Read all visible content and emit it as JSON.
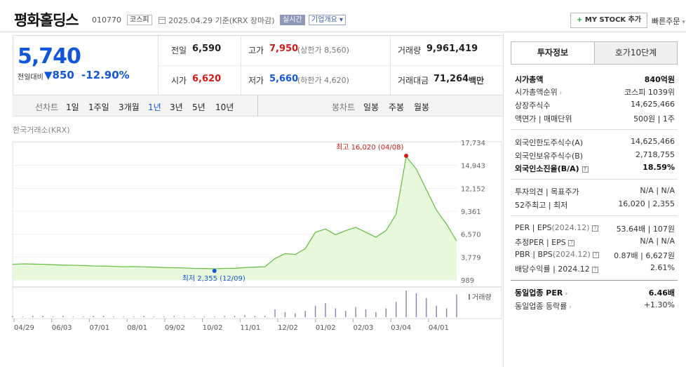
{
  "header": {
    "name": "평화홀딩스",
    "code": "010770",
    "market_badge": "코스피",
    "date_text": "2025.04.29  기준(KRX 장마감)",
    "realtime_badge": "실시간",
    "company_info_button": "기업개요",
    "my_stock_button": "MY STOCK 추가",
    "quick_order": "빠른주문"
  },
  "price": {
    "current": "5,740",
    "change_label": "전일대비",
    "change_value": "850",
    "change_percent": "-12.90%"
  },
  "stats": {
    "prev_close_label": "전일",
    "prev_close": "6,590",
    "high_label": "고가",
    "high": "7,950",
    "upper_limit": "(상한가 8,560)",
    "volume_label": "거래량",
    "volume": "9,961,419",
    "open_label": "시가",
    "open": "6,620",
    "low_label": "저가",
    "low": "5,660",
    "lower_limit": "(하한가 4,620)",
    "amount_label": "거래대금",
    "amount": "71,264",
    "amount_unit": "백만"
  },
  "tabs": {
    "line_chart": "선차트",
    "periods": [
      "1일",
      "1주일",
      "3개월",
      "1년",
      "3년",
      "5년",
      "10년"
    ],
    "selected_period": "1년",
    "candle_chart": "봉차트",
    "candles": [
      "일봉",
      "주봉",
      "월봉"
    ]
  },
  "chart_source": "한국거래소(KRX)",
  "chart_data": {
    "type": "line",
    "y_ticks": [
      "17,734",
      "14,943",
      "12,152",
      "9,361",
      "6,570",
      "3,779",
      "989"
    ],
    "ylim": [
      989,
      17734
    ],
    "x_labels": [
      "04/29",
      "06/03",
      "07/01",
      "08/01",
      "09/02",
      "10/02",
      "11/01",
      "12/02",
      "01/02",
      "02/03",
      "03/04",
      "04/01"
    ],
    "max_label": "최고 16,020 (04/08)",
    "min_label": "최저 2,355 (12/09)",
    "volume_legend": "거래량",
    "series": [
      {
        "values": [
          2900,
          2950,
          2930,
          2900,
          2850,
          2800,
          2780,
          2750,
          2700,
          2680,
          2650,
          2600,
          2620,
          2580,
          2550,
          2500,
          2480,
          2450,
          2400,
          2380,
          2355,
          2400,
          2420,
          2500,
          2550,
          2600,
          3600,
          4200,
          4100,
          4800,
          6800,
          7200,
          6500,
          7000,
          7400,
          6800,
          6200,
          7000,
          9000,
          16020,
          14500,
          12000,
          9500,
          7800,
          5740
        ]
      }
    ],
    "volume": [
      2,
      1,
      2,
      2,
      1,
      2,
      1,
      1,
      2,
      2,
      1,
      1,
      1,
      2,
      1,
      1,
      2,
      1,
      1,
      1,
      1,
      2,
      2,
      3,
      2,
      2,
      12,
      8,
      6,
      10,
      18,
      22,
      14,
      10,
      16,
      12,
      8,
      14,
      24,
      42,
      38,
      30,
      18,
      14,
      36
    ]
  },
  "right_panel": {
    "tab_invest": "투자정보",
    "tab_orderbook": "호가10단계",
    "market_cap_label": "시가총액",
    "market_cap": "840억원",
    "market_cap_rank_label": "시가총액순위",
    "market_cap_rank": "코스피 1039위",
    "shares_label": "상장주식수",
    "shares": "14,625,466",
    "face_label": "액면가 | 매매단위",
    "face": "500원 | 1주",
    "foreign_limit_label": "외국인한도주식수(A)",
    "foreign_limit": "14,625,466",
    "foreign_hold_label": "외국인보유주식수(B)",
    "foreign_hold": "2,718,755",
    "foreign_ratio_label": "외국인소진율(B/A)",
    "foreign_ratio": "18.59%",
    "opinion_label": "투자의견 | 목표주가",
    "opinion": "N/A | N/A",
    "week52_label": "52주최고 | 최저",
    "week52": "16,020 | 2,355",
    "per_label": "PER | EPS",
    "per_period": "(2024.12)",
    "per": "53.64배 | 107원",
    "est_per_label": "추정PER | EPS",
    "est_per": "N/A | N/A",
    "pbr_label": "PBR | BPS",
    "pbr_period": "(2024.12)",
    "pbr": "0.87배 | 6,627원",
    "div_label": "배당수익률 | ",
    "div_period": "2024.12",
    "div": "2.61%",
    "industry_per_label": "동일업종 PER",
    "industry_per": "6.46배",
    "industry_chg_label": "동일업종 등락률",
    "industry_chg": "+1.30%"
  }
}
